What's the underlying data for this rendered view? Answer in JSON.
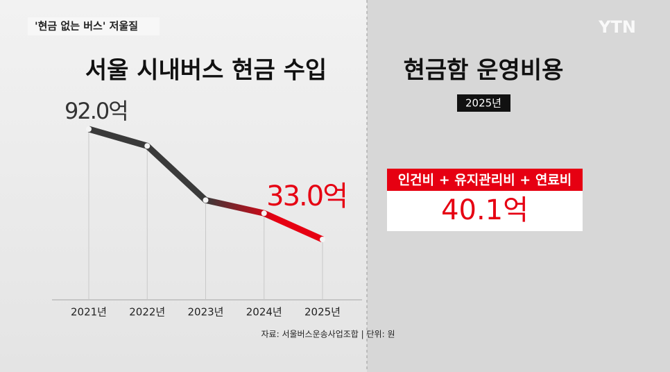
{
  "header": "'현금 없는 버스' 저울질",
  "logo": "YTN",
  "chart_data": {
    "type": "line",
    "title": "서울 시내버스 현금 수입",
    "categories": [
      "2021년",
      "2022년",
      "2023년",
      "2024년",
      "2025년"
    ],
    "series": [
      {
        "name": "현금 수입",
        "color": "#3a3a3a",
        "highlight_color": "#e60012",
        "values": [
          92.0,
          83,
          54,
          47,
          33.0
        ],
        "value_labels": [
          "92.0억",
          null,
          null,
          null,
          "33.0억"
        ]
      }
    ],
    "source": "자료: 서울버스운송사업조합 | 단위: 원"
  },
  "cost_panel": {
    "title": "현금함 운영비용",
    "year": "2025년",
    "components": "인건비 + 유지관리비 + 연료비",
    "value": "40.1억"
  }
}
